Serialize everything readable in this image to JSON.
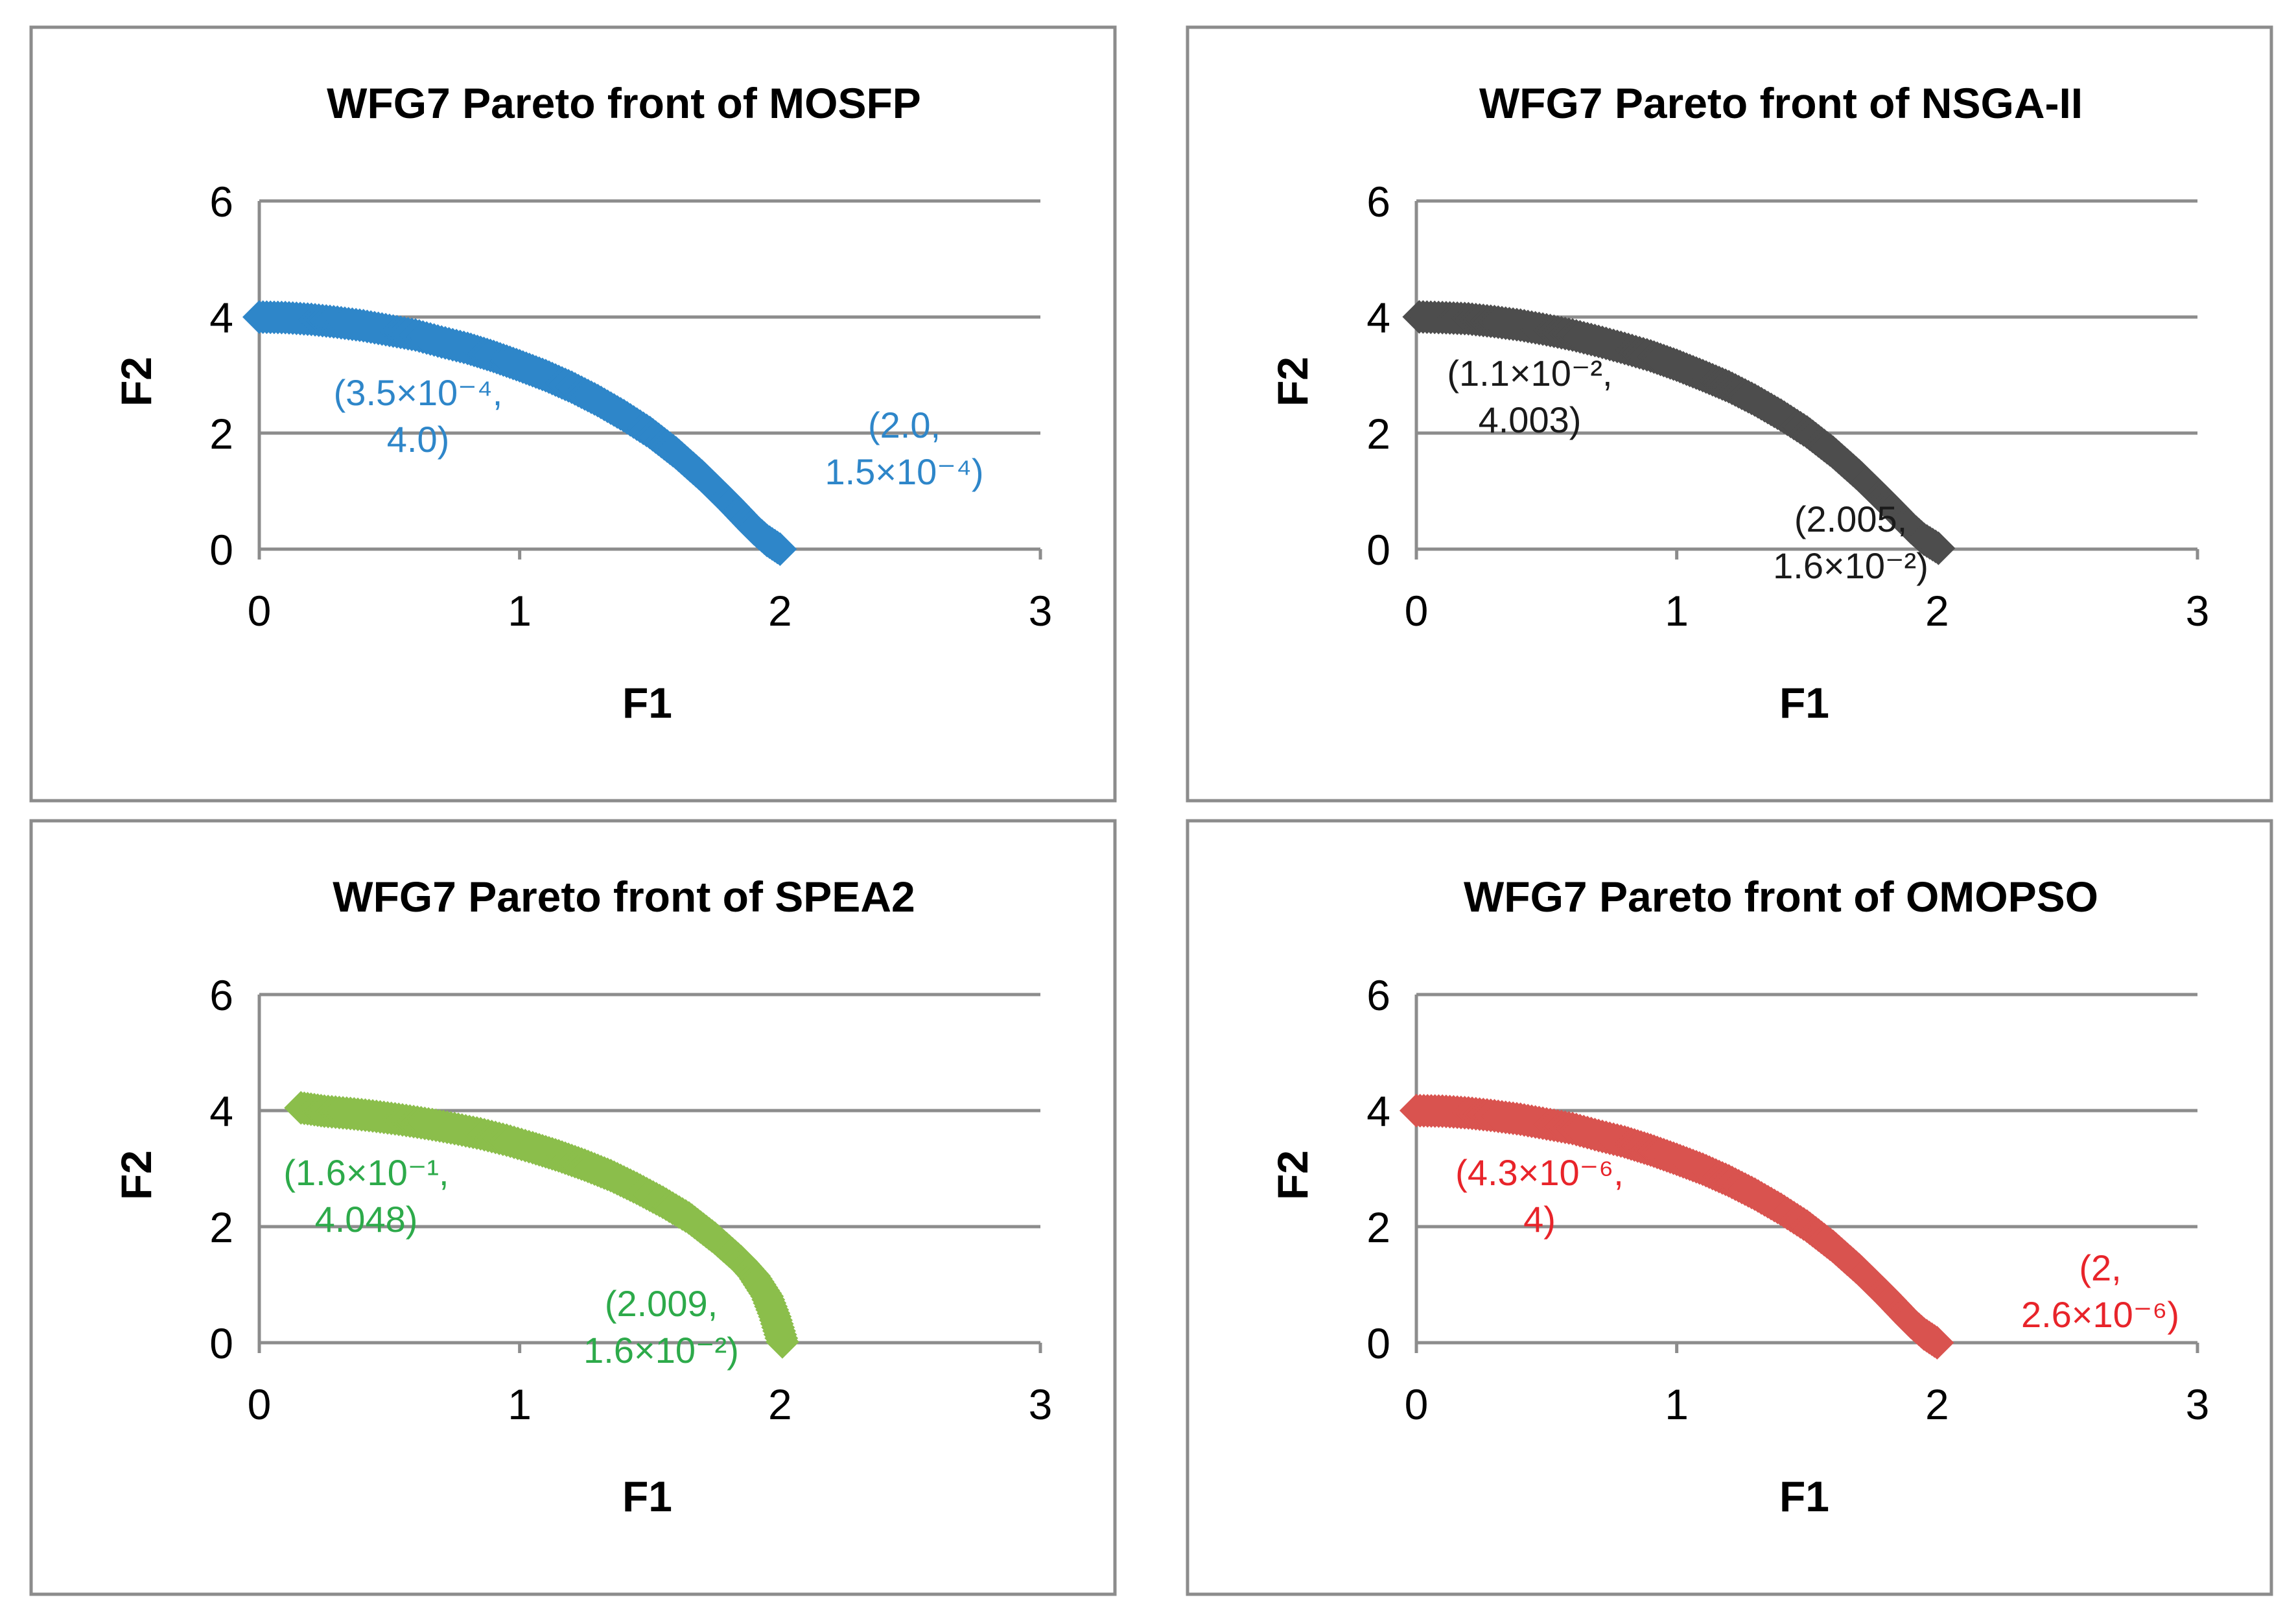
{
  "chart_data": [
    {
      "type": "scatter",
      "title": "WFG7 Pareto front of MOSFP",
      "xlabel": "F1",
      "ylabel": "F2",
      "xlim": [
        0,
        3
      ],
      "ylim": [
        0,
        6
      ],
      "xticks": [
        "0",
        "1",
        "2",
        "3"
      ],
      "yticks": [
        "0",
        "2",
        "4",
        "6"
      ],
      "grid": "horizontal",
      "series": [
        {
          "color": "#2E86C9",
          "marker": "diamond",
          "x": [
            0.0,
            0.1,
            0.2,
            0.3,
            0.4,
            0.5,
            0.6,
            0.7,
            0.8,
            0.9,
            1.0,
            1.1,
            1.2,
            1.3,
            1.4,
            1.5,
            1.6,
            1.7,
            1.8,
            1.9,
            1.95,
            2.0
          ],
          "y": [
            4.0,
            3.99,
            3.96,
            3.91,
            3.85,
            3.77,
            3.69,
            3.57,
            3.46,
            3.32,
            3.16,
            2.99,
            2.79,
            2.56,
            2.3,
            2.01,
            1.66,
            1.26,
            0.82,
            0.35,
            0.15,
            0.0
          ]
        }
      ],
      "annotations": [
        {
          "lines": [
            "(3.5×10⁻⁴,",
            "4.0)"
          ],
          "color": "#2E86C9"
        },
        {
          "lines": [
            "(2.0,",
            "1.5×10⁻⁴)"
          ],
          "color": "#2E86C9"
        }
      ]
    },
    {
      "type": "scatter",
      "title": "WFG7 Pareto front of NSGA-II",
      "xlabel": "F1",
      "ylabel": "F2",
      "xlim": [
        0,
        3
      ],
      "ylim": [
        0,
        6
      ],
      "xticks": [
        "0",
        "1",
        "2",
        "3"
      ],
      "yticks": [
        "0",
        "2",
        "4",
        "6"
      ],
      "grid": "horizontal",
      "series": [
        {
          "color": "#4D4D4D",
          "marker": "diamond",
          "x": [
            0.011,
            0.1,
            0.2,
            0.3,
            0.4,
            0.5,
            0.6,
            0.7,
            0.8,
            0.9,
            1.0,
            1.1,
            1.2,
            1.3,
            1.4,
            1.5,
            1.6,
            1.7,
            1.8,
            1.9,
            1.95,
            2.005
          ],
          "y": [
            4.003,
            3.99,
            3.97,
            3.92,
            3.86,
            3.78,
            3.69,
            3.58,
            3.46,
            3.33,
            3.17,
            2.99,
            2.8,
            2.57,
            2.31,
            2.02,
            1.67,
            1.27,
            0.83,
            0.37,
            0.17,
            0.016
          ]
        }
      ],
      "annotations": [
        {
          "lines": [
            "(1.1×10⁻²,",
            "4.003)"
          ],
          "color": "#1A1A1A"
        },
        {
          "lines": [
            "(2.005,",
            "1.6×10⁻²)"
          ],
          "color": "#1A1A1A"
        }
      ]
    },
    {
      "type": "scatter",
      "title": "WFG7 Pareto front of SPEA2",
      "xlabel": "F1",
      "ylabel": "F2",
      "xlim": [
        0,
        3
      ],
      "ylim": [
        0,
        6
      ],
      "xticks": [
        "0",
        "1",
        "2",
        "3"
      ],
      "yticks": [
        "0",
        "2",
        "4",
        "6"
      ],
      "grid": "horizontal",
      "series": [
        {
          "color": "#8BBE4B",
          "marker": "diamond",
          "x": [
            0.16,
            0.25,
            0.35,
            0.45,
            0.55,
            0.65,
            0.75,
            0.85,
            0.95,
            1.05,
            1.15,
            1.25,
            1.35,
            1.45,
            1.55,
            1.65,
            1.75,
            1.85,
            1.9,
            1.95,
            1.98,
            2.009
          ],
          "y": [
            4.048,
            3.99,
            3.95,
            3.9,
            3.84,
            3.77,
            3.69,
            3.6,
            3.49,
            3.36,
            3.22,
            3.06,
            2.88,
            2.66,
            2.42,
            2.15,
            1.8,
            1.4,
            1.15,
            0.8,
            0.45,
            0.016
          ]
        }
      ],
      "annotations": [
        {
          "lines": [
            "(1.6×10⁻¹,",
            "4.048)"
          ],
          "color": "#2DAA4A"
        },
        {
          "lines": [
            "(2.009,",
            "1.6×10⁻²)"
          ],
          "color": "#2DAA4A"
        }
      ]
    },
    {
      "type": "scatter",
      "title": "WFG7 Pareto front of OMOPSO",
      "xlabel": "F1",
      "ylabel": "F2",
      "xlim": [
        0,
        3
      ],
      "ylim": [
        0,
        6
      ],
      "xticks": [
        "0",
        "1",
        "2",
        "3"
      ],
      "yticks": [
        "0",
        "2",
        "4",
        "6"
      ],
      "grid": "horizontal",
      "series": [
        {
          "color": "#D9534F",
          "marker": "diamond",
          "x": [
            0.0,
            0.1,
            0.2,
            0.3,
            0.4,
            0.5,
            0.6,
            0.7,
            0.8,
            0.9,
            1.0,
            1.1,
            1.2,
            1.3,
            1.4,
            1.5,
            1.6,
            1.7,
            1.8,
            1.9,
            1.95,
            2.0
          ],
          "y": [
            4.0,
            3.99,
            3.96,
            3.91,
            3.85,
            3.77,
            3.69,
            3.57,
            3.46,
            3.32,
            3.16,
            2.99,
            2.79,
            2.56,
            2.3,
            2.01,
            1.66,
            1.26,
            0.82,
            0.35,
            0.15,
            0.0
          ]
        }
      ],
      "annotations": [
        {
          "lines": [
            "(4.3×10⁻⁶,",
            "4)"
          ],
          "color": "#E8242A"
        },
        {
          "lines": [
            "(2,",
            "2.6×10⁻⁶)"
          ],
          "color": "#E8242A"
        }
      ]
    }
  ]
}
